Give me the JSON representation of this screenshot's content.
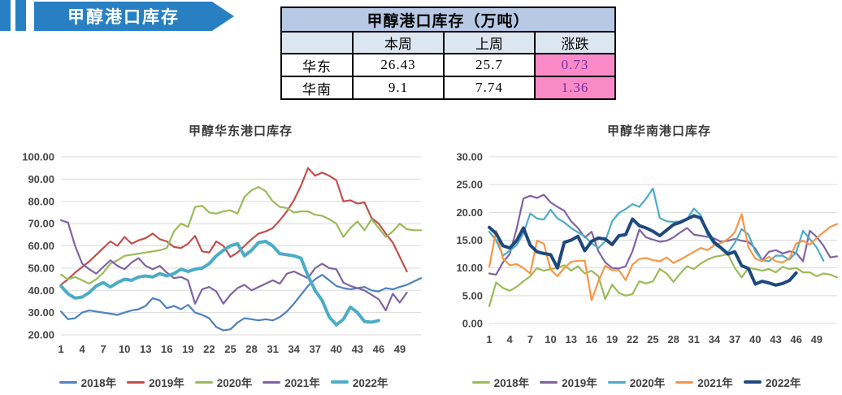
{
  "banner": {
    "label": "甲醇港口库存",
    "bg_color": "#2880C3"
  },
  "table": {
    "title": "甲醇港口库存（万吨）",
    "columns": [
      "",
      "本周",
      "上周",
      "涨跌"
    ],
    "rows": [
      {
        "region": "华东",
        "this_week": "26.43",
        "last_week": "25.7",
        "change": "0.73"
      },
      {
        "region": "华南",
        "this_week": "9.1",
        "last_week": "7.74",
        "change": "1.36"
      }
    ],
    "title_bg": "#b7c9e4",
    "header_bg": "#dce6f1",
    "row_bg": "#ffffff",
    "change_bg": "#fb8bc8",
    "change_text": "#7030a0"
  },
  "chart_data": [
    {
      "type": "line",
      "title": "甲醇华东港口库存",
      "xlabel": "",
      "ylabel": "",
      "x_count": 52,
      "x_ticks": [
        "1",
        "4",
        "7",
        "10",
        "13",
        "16",
        "19",
        "22",
        "25",
        "28",
        "31",
        "34",
        "37",
        "40",
        "43",
        "46",
        "49"
      ],
      "ylim": [
        20,
        100
      ],
      "y_ticks": [
        20,
        30,
        40,
        50,
        60,
        70,
        80,
        90,
        100
      ],
      "y_tick_labels": [
        "20.00",
        "30.00",
        "40.00",
        "50.00",
        "60.00",
        "70.00",
        "80.00",
        "90.00",
        "100.00"
      ],
      "grid": true,
      "grid_color": "#d9d9d9",
      "legend_position": "bottom",
      "series": [
        {
          "name": "2018年",
          "color": "#4F81BD",
          "width": 2.2,
          "values": [
            30.5,
            27,
            27.5,
            30,
            31,
            30.5,
            30,
            29.5,
            29,
            30,
            31,
            31.5,
            33,
            36.5,
            35.5,
            32,
            33,
            31.5,
            33.5,
            30,
            29,
            27.5,
            23.5,
            22,
            22.5,
            25.5,
            27.5,
            27,
            26.5,
            27,
            26.5,
            28,
            30.5,
            34,
            38,
            42,
            45,
            47,
            44.5,
            42,
            41,
            40.5,
            41,
            41.5,
            40,
            39.5,
            41,
            40.5,
            41.5,
            42.5,
            44,
            45.5
          ]
        },
        {
          "name": "2019年",
          "color": "#C0504D",
          "width": 2.2,
          "values": [
            42.5,
            45,
            48,
            50.5,
            53,
            56,
            59,
            62,
            60,
            64,
            61,
            62.5,
            63.5,
            65.5,
            63,
            62,
            59.5,
            59,
            61,
            64.5,
            57.5,
            57,
            62,
            60,
            55,
            57,
            60,
            63,
            65.5,
            66.5,
            68,
            71.5,
            75.5,
            80.5,
            87,
            95,
            91.5,
            93,
            91.5,
            89.5,
            80,
            80.5,
            79,
            79.5,
            72.5,
            70,
            65.5,
            61.5,
            55,
            48.5
          ]
        },
        {
          "name": "2020年",
          "color": "#9BBB59",
          "width": 2.2,
          "values": [
            47,
            45,
            46,
            44.5,
            43,
            45,
            48,
            52,
            53.5,
            55.5,
            56,
            56.5,
            57,
            57.5,
            58,
            59,
            66.5,
            70,
            68.5,
            77.5,
            78,
            75,
            74.5,
            75.5,
            76,
            74.5,
            82,
            85,
            86.5,
            84.5,
            80,
            77.5,
            77,
            75,
            75.5,
            75.5,
            74,
            73.5,
            72,
            70,
            64,
            68,
            71,
            67,
            72,
            68,
            64,
            66.5,
            70,
            67.5,
            67,
            67
          ]
        },
        {
          "name": "2021年",
          "color": "#8064A2",
          "width": 2.2,
          "values": [
            71.5,
            70.5,
            60,
            52,
            49.5,
            47.5,
            50.5,
            53.5,
            51,
            49.5,
            52.5,
            54.5,
            51,
            49.5,
            51,
            48,
            45.5,
            46,
            44.5,
            34,
            40.5,
            41.5,
            39.5,
            34,
            38,
            41,
            42.5,
            40,
            41.5,
            43,
            44.5,
            43,
            47.5,
            48.5,
            47,
            45.5,
            50,
            52,
            50,
            49.5,
            43.5,
            42,
            41,
            40,
            38,
            36,
            31,
            38.5,
            34.5,
            39
          ]
        },
        {
          "name": "2022年",
          "color": "#4BACC6",
          "width": 4,
          "values": [
            42,
            38.5,
            36.5,
            37,
            39,
            42,
            43.5,
            41.5,
            43.5,
            45,
            44.5,
            46,
            46.5,
            46,
            47.5,
            46.5,
            47.5,
            49.5,
            48.5,
            49.5,
            50,
            52,
            55.5,
            58,
            60,
            61,
            55.5,
            58,
            61.5,
            62,
            60,
            56.5,
            56,
            55.5,
            54.5,
            46.5,
            40,
            35.5,
            28,
            24.5,
            27,
            32.5,
            30,
            26,
            25.7,
            26.43
          ]
        }
      ]
    },
    {
      "type": "line",
      "title": "甲醇华南港口库存",
      "xlabel": "",
      "ylabel": "",
      "x_count": 52,
      "x_ticks": [
        "1",
        "4",
        "7",
        "10",
        "13",
        "16",
        "19",
        "22",
        "25",
        "28",
        "31",
        "34",
        "37",
        "40",
        "43",
        "46",
        "49"
      ],
      "ylim": [
        0,
        30
      ],
      "y_ticks": [
        0,
        5,
        10,
        15,
        20,
        25,
        30
      ],
      "y_tick_labels": [
        "0.00",
        "5.00",
        "10.00",
        "15.00",
        "20.00",
        "25.00",
        "30.00"
      ],
      "grid": true,
      "grid_color": "#d9d9d9",
      "legend_position": "bottom",
      "series": [
        {
          "name": "2018年",
          "color": "#9BBB59",
          "width": 2.2,
          "values": [
            3.1,
            7.4,
            6.4,
            5.9,
            6.6,
            7.6,
            8.5,
            10,
            9.5,
            9.8,
            10,
            10.5,
            9.5,
            10.3,
            9,
            9.5,
            8.5,
            4.4,
            7,
            5.5,
            5,
            5.3,
            7.6,
            7.2,
            7.6,
            9.8,
            9,
            7.5,
            9,
            10.3,
            9.8,
            10.8,
            11.5,
            12,
            12.2,
            12.5,
            10,
            8.3,
            10,
            9.8,
            9.5,
            9.8,
            9.2,
            10.2,
            9.8,
            10,
            9.2,
            9.2,
            8.5,
            9,
            8.8,
            8.3
          ]
        },
        {
          "name": "2019年",
          "color": "#8064A2",
          "width": 2.2,
          "values": [
            9,
            8.8,
            11,
            12.5,
            17,
            22.5,
            23,
            22.6,
            23.2,
            21.8,
            21,
            20.3,
            18.4,
            17.2,
            15.5,
            16.5,
            13,
            11,
            10,
            9.9,
            10.3,
            13,
            16.9,
            15.5,
            15.1,
            14.7,
            14.9,
            15.5,
            16.4,
            17.2,
            16,
            15.8,
            15.6,
            15.3,
            14.7,
            14.9,
            15.2,
            14.9,
            14.7,
            13.5,
            11.4,
            12.9,
            13.2,
            12.6,
            13,
            12.7,
            11.2,
            16.7,
            15.6,
            14,
            11.9,
            12.1
          ]
        },
        {
          "name": "2020年",
          "color": "#4BACC6",
          "width": 2.2,
          "values": [
            16.5,
            15,
            12.2,
            13.1,
            14.1,
            16.2,
            19.8,
            18.9,
            18.7,
            20.5,
            18.9,
            18.2,
            17.2,
            16.4,
            15.7,
            14.4,
            13.6,
            14.8,
            18.4,
            19.9,
            20.6,
            21.5,
            21,
            22.5,
            24.3,
            19,
            18.4,
            18.3,
            18.4,
            18.8,
            20.7,
            19.5,
            16,
            14.2,
            13.5,
            12.8,
            14.5,
            17,
            16,
            13,
            11.4,
            11.2,
            12.2,
            12.2,
            11.5,
            12.8,
            16.7,
            15.2,
            13.7,
            11.3
          ]
        },
        {
          "name": "2021年",
          "color": "#F79646",
          "width": 2.2,
          "values": [
            10.2,
            16.7,
            11.7,
            10.5,
            10.7,
            10,
            9,
            14.9,
            14.4,
            9.7,
            8.5,
            10,
            11.1,
            11.3,
            11.3,
            4.2,
            7.6,
            10.4,
            9.6,
            9.6,
            7.8,
            10.6,
            11.6,
            11.8,
            11.4,
            11.2,
            11.9,
            10.9,
            11.5,
            12.2,
            12.9,
            13.6,
            13.2,
            14.1,
            14.5,
            15.2,
            16.4,
            19.7,
            13.7,
            11.7,
            11.2,
            12,
            11.2,
            11,
            11.7,
            14.4,
            14.9,
            14.2,
            15.4,
            16.4,
            17.4,
            17.9
          ]
        },
        {
          "name": "2022年",
          "color": "#1F497D",
          "width": 4,
          "values": [
            17.3,
            16.2,
            14,
            13.6,
            14.9,
            17.2,
            14.1,
            12.9,
            12.6,
            12.4,
            10,
            14.6,
            15,
            15.7,
            13.1,
            14.8,
            15.4,
            15.2,
            14.2,
            15.8,
            16,
            18.8,
            17.6,
            17.2,
            16.6,
            15.8,
            16.8,
            17.8,
            18.2,
            18.8,
            19.4,
            19,
            16.5,
            14.6,
            13.6,
            12.5,
            12.9,
            10.4,
            9.9,
            7.1,
            7.6,
            7.3,
            6.9,
            7.2,
            7.74,
            9.1
          ]
        }
      ]
    }
  ]
}
